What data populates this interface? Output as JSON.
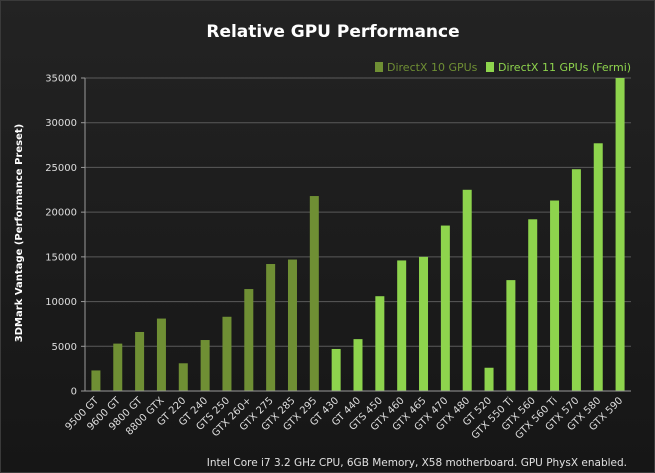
{
  "chart_data": {
    "type": "bar",
    "title": "Relative GPU Performance",
    "ylabel": "3DMark Vantage (Performance Preset)",
    "xlabel": "",
    "ylim": [
      0,
      35000
    ],
    "yticks": [
      0,
      5000,
      10000,
      15000,
      20000,
      25000,
      30000,
      35000
    ],
    "grid": true,
    "legend_position": "top-right",
    "colors": {
      "directx10": "#6f8f34",
      "directx11": "#8ed44d",
      "grid": "#5a5a5a",
      "axis": "#9a9a9a"
    },
    "categories": [
      "9500 GT",
      "9600 GT",
      "9800 GT",
      "8800 GTX",
      "GT 220",
      "GT 240",
      "GTS 250",
      "GTX 260+",
      "GTX 275",
      "GTX 285",
      "GTX 295",
      "GT 430",
      "GT 440",
      "GTS 450",
      "GTX 460",
      "GTX 465",
      "GTX 470",
      "GTX 480",
      "GT 520",
      "GTX 550 Ti",
      "GTX 560",
      "GTX 560 Ti",
      "GTX 570",
      "GTX 580",
      "GTX 590"
    ],
    "series": [
      {
        "name": "DirectX 10 GPUs",
        "values": [
          2300,
          5300,
          6600,
          8100,
          3100,
          5700,
          8300,
          11400,
          14200,
          14700,
          21800,
          null,
          null,
          null,
          null,
          null,
          null,
          null,
          null,
          null,
          null,
          null,
          null,
          null,
          null
        ]
      },
      {
        "name": "DirectX 11 GPUs (Fermi)",
        "values": [
          null,
          null,
          null,
          null,
          null,
          null,
          null,
          null,
          null,
          null,
          null,
          4700,
          5800,
          10600,
          14600,
          15000,
          18500,
          22500,
          2600,
          12400,
          19200,
          21300,
          24800,
          27700,
          35000
        ]
      }
    ],
    "footnote": "Intel Core i7 3.2 GHz CPU, 6GB Memory, X58 motherboard. GPU PhysX enabled."
  }
}
